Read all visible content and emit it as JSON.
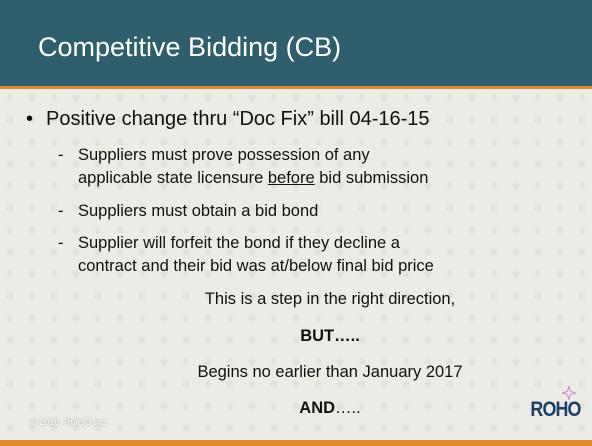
{
  "slide": {
    "title": "Competitive Bidding (CB)",
    "bullet": "Positive change thru “Doc Fix” bill 04-16-15",
    "sub_items": [
      {
        "line1": "Suppliers must prove possession of any",
        "line2_start": "applicable state licensure ",
        "line2_underlined": "before",
        "line2_end": " bid submission"
      },
      {
        "line1": "Suppliers must obtain a bid bond"
      },
      {
        "line1": "Supplier will forfeit the bond if they decline a",
        "line2_start": "contract and their bid was at/below final bid price"
      }
    ],
    "statements": [
      {
        "text": "This is a step in the right direction,"
      },
      {
        "bold": "BUT….."
      },
      {
        "text": "Begins no earlier than January 2017"
      },
      {
        "bold": "AND",
        "text": "….."
      }
    ],
    "footer": "© 2016, ROHO Inc.",
    "logo": "ROHO"
  }
}
